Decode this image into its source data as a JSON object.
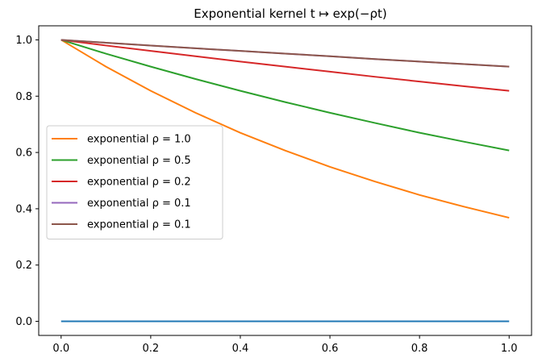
{
  "chart_data": {
    "type": "line",
    "title": "Exponential kernel t ↦ exp(−ρt)",
    "xlabel": "",
    "ylabel": "",
    "xlim": [
      -0.05,
      1.05
    ],
    "ylim": [
      -0.05,
      1.05
    ],
    "xticks": [
      0.0,
      0.2,
      0.4,
      0.6,
      0.8,
      1.0
    ],
    "xtick_labels": [
      "0.0",
      "0.2",
      "0.4",
      "0.6",
      "0.8",
      "1.0"
    ],
    "yticks": [
      0.0,
      0.2,
      0.4,
      0.6,
      0.8,
      1.0
    ],
    "ytick_labels": [
      "0.0",
      "0.2",
      "0.4",
      "0.6",
      "0.8",
      "1.0"
    ],
    "grid": false,
    "legend_position": "center-left",
    "x": [
      0.0,
      0.1,
      0.2,
      0.3,
      0.4,
      0.5,
      0.6,
      0.7,
      0.8,
      0.9,
      1.0
    ],
    "series": [
      {
        "name": "",
        "color": "#1f77b4",
        "in_legend": false,
        "values": [
          0,
          0,
          0,
          0,
          0,
          0,
          0,
          0,
          0,
          0,
          0
        ]
      },
      {
        "name": "exponential ρ = 1.0",
        "color": "#ff7f0e",
        "in_legend": true,
        "values": [
          1.0,
          0.905,
          0.819,
          0.741,
          0.67,
          0.607,
          0.549,
          0.497,
          0.449,
          0.407,
          0.368
        ]
      },
      {
        "name": "exponential ρ = 0.5",
        "color": "#2ca02c",
        "in_legend": true,
        "values": [
          1.0,
          0.951,
          0.905,
          0.861,
          0.819,
          0.779,
          0.741,
          0.705,
          0.67,
          0.638,
          0.607
        ]
      },
      {
        "name": "exponential ρ = 0.2",
        "color": "#d62728",
        "in_legend": true,
        "values": [
          1.0,
          0.98,
          0.961,
          0.942,
          0.923,
          0.905,
          0.887,
          0.869,
          0.852,
          0.835,
          0.819
        ]
      },
      {
        "name": "exponential ρ = 0.1",
        "color": "#9467bd",
        "in_legend": true,
        "values": [
          1.0,
          0.99,
          0.98,
          0.97,
          0.961,
          0.951,
          0.942,
          0.932,
          0.923,
          0.914,
          0.905
        ]
      },
      {
        "name": "exponential ρ = 0.1",
        "color": "#8c564b",
        "in_legend": true,
        "values": [
          1.0,
          0.99,
          0.98,
          0.97,
          0.961,
          0.951,
          0.942,
          0.932,
          0.923,
          0.914,
          0.905
        ]
      }
    ]
  }
}
